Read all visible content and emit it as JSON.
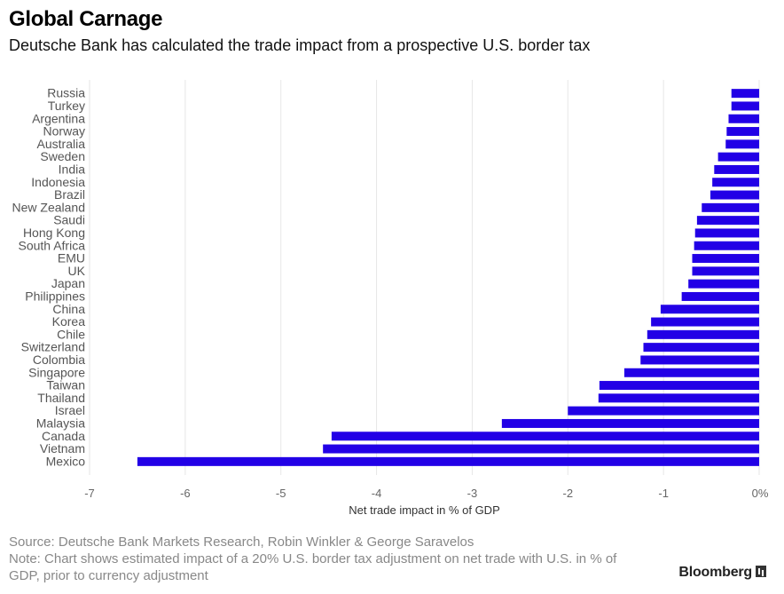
{
  "title": "Global Carnage",
  "subtitle": "Deutsche Bank has calculated the trade impact from a prospective U.S. border tax",
  "source": "Source: Deutsche Bank Markets Research, Robin Winkler & George Saravelos",
  "note": "Note: Chart shows estimated impact of a 20% U.S. border tax adjustment on net trade with U.S. in % of GDP, prior to currency adjustment",
  "brand": "Bloomberg",
  "colors": {
    "bar": "#2200e6",
    "grid": "#e6e6e6"
  },
  "chart_data": {
    "type": "bar",
    "orientation": "horizontal",
    "categories": [
      "Russia",
      "Turkey",
      "Argentina",
      "Norway",
      "Australia",
      "Sweden",
      "India",
      "Indonesia",
      "Brazil",
      "New Zealand",
      "Saudi",
      "Hong Kong",
      "South Africa",
      "EMU",
      "UK",
      "Japan",
      "Philippines",
      "China",
      "Korea",
      "Chile",
      "Switzerland",
      "Colombia",
      "Singapore",
      "Taiwan",
      "Thailand",
      "Israel",
      "Malaysia",
      "Canada",
      "Vietnam",
      "Mexico"
    ],
    "values": [
      -0.29,
      -0.29,
      -0.32,
      -0.34,
      -0.35,
      -0.43,
      -0.47,
      -0.49,
      -0.51,
      -0.6,
      -0.65,
      -0.67,
      -0.68,
      -0.7,
      -0.7,
      -0.74,
      -0.81,
      -1.03,
      -1.13,
      -1.17,
      -1.21,
      -1.24,
      -1.41,
      -1.67,
      -1.68,
      -2.0,
      -2.69,
      -4.47,
      -4.56,
      -6.5
    ],
    "xlabel": "Net trade impact in % of GDP",
    "ylabel": "",
    "xlim": [
      -7,
      0
    ],
    "xticks": [
      "-7",
      "-6",
      "-5",
      "-4",
      "-3",
      "-2",
      "-1",
      "0%"
    ],
    "grid": true,
    "legend": "none"
  }
}
